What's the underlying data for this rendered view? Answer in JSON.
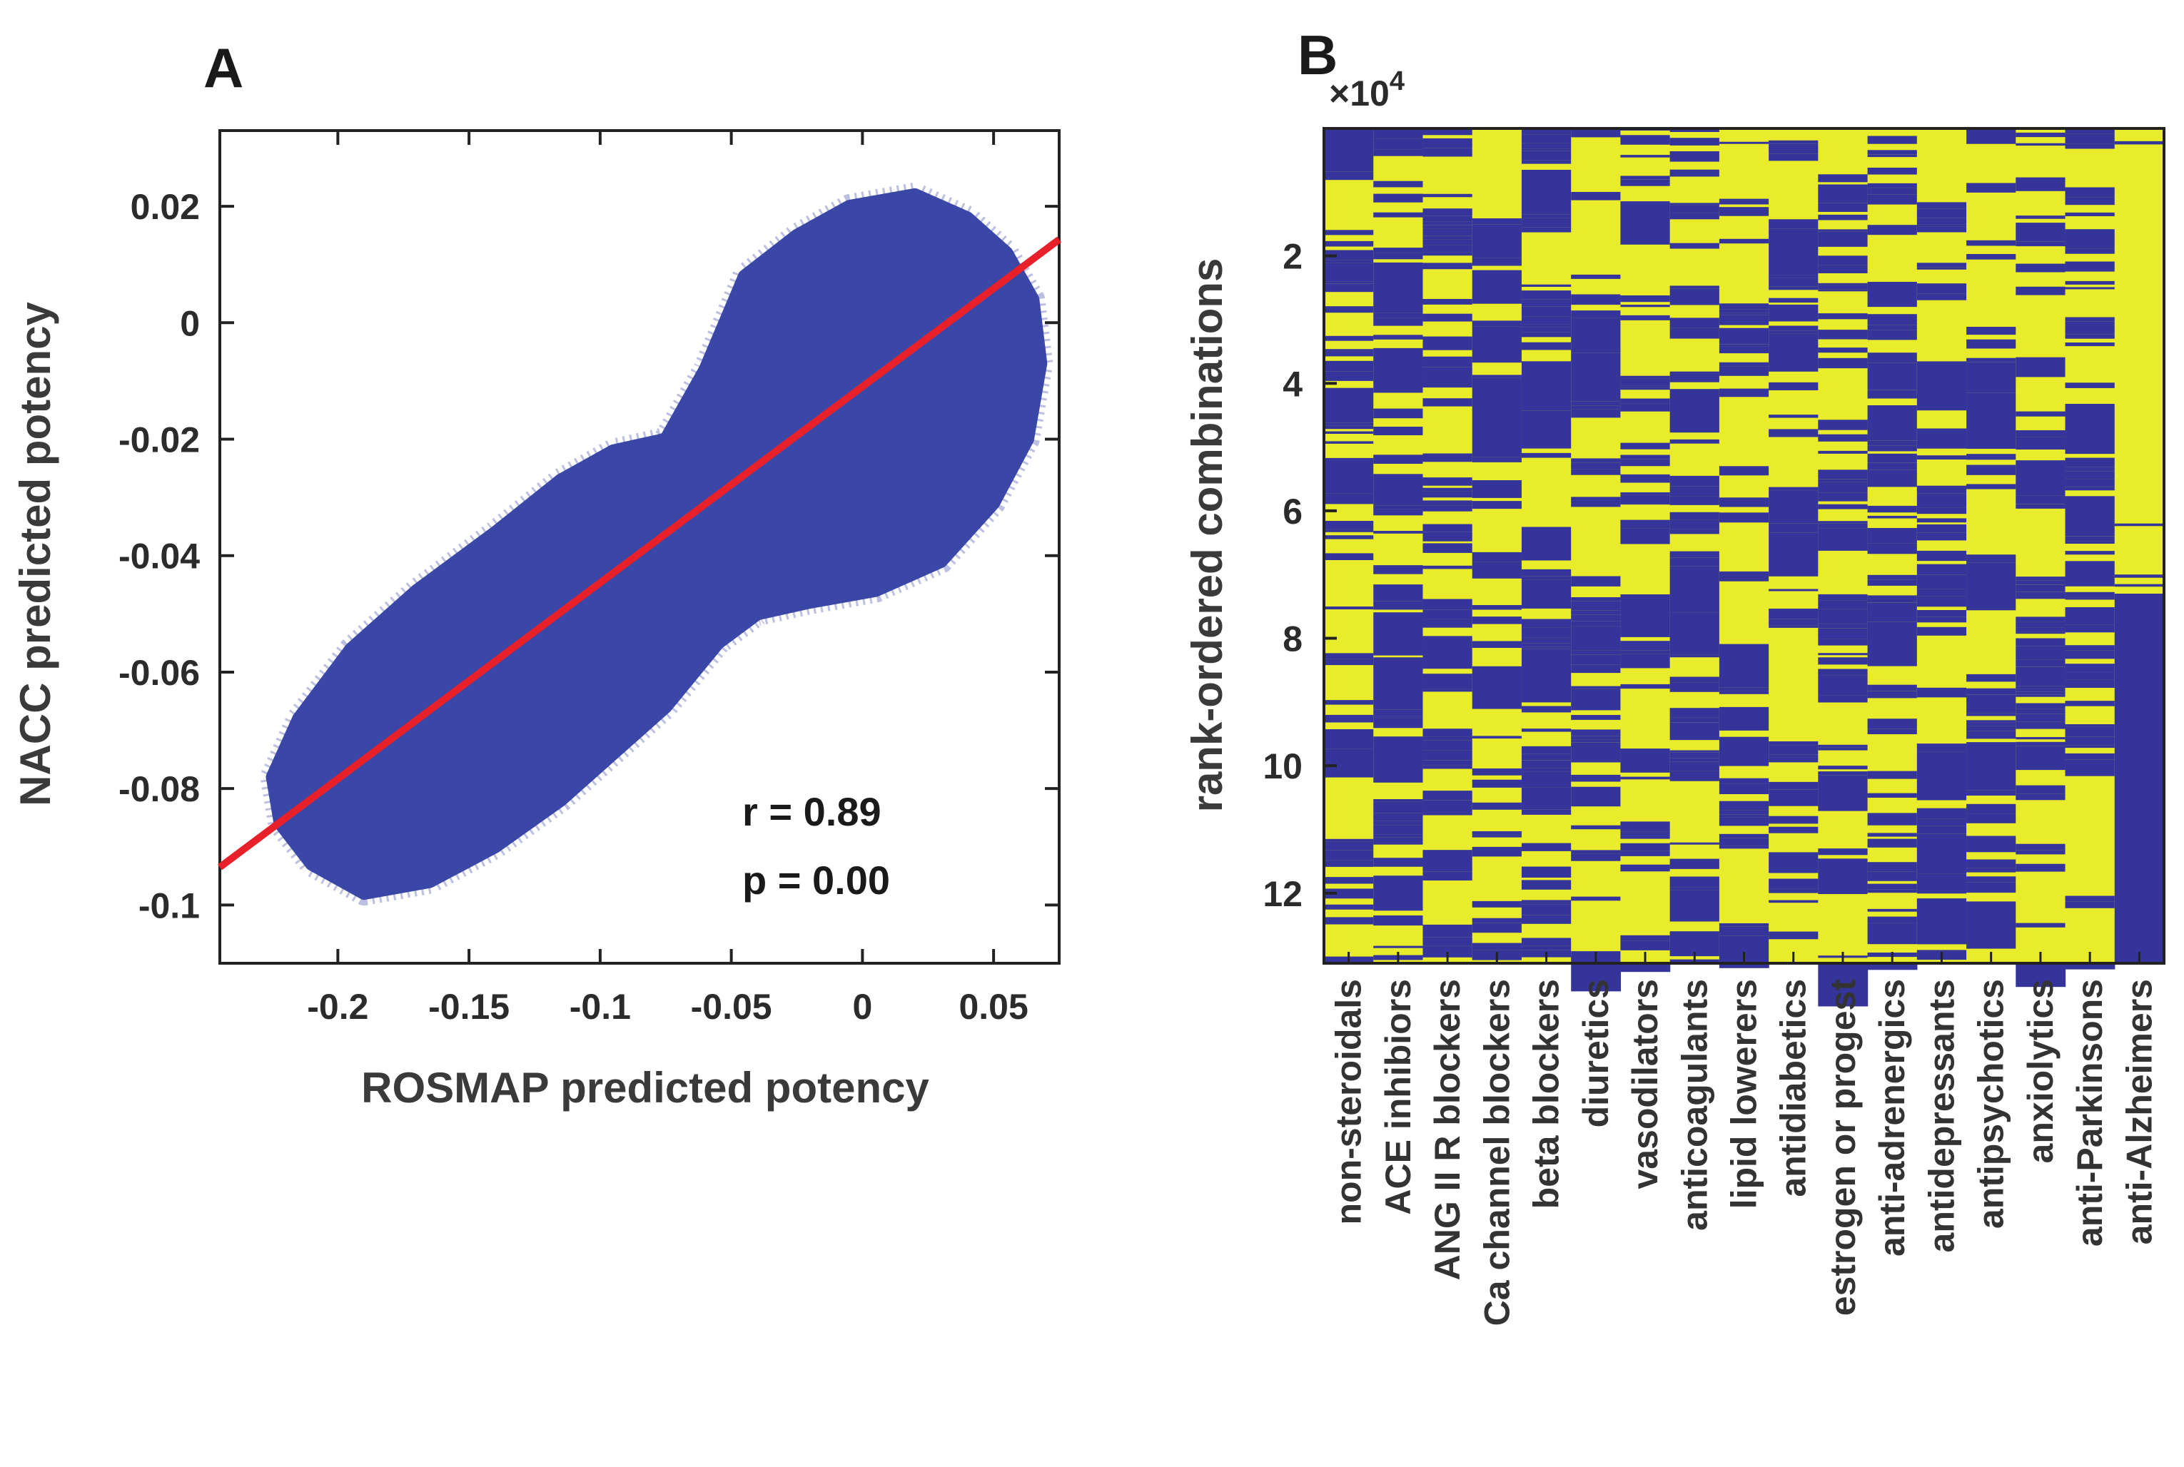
{
  "colors": {
    "point": "#3b47a6",
    "fit": "#e8202a",
    "yellow": "#e9ec2a",
    "blue": "#34349a",
    "axis": "#222222"
  },
  "chart_data": [
    {
      "panel": "A",
      "type": "scatter",
      "xlabel": "ROSMAP predicted potency",
      "ylabel": "NACC predicted potency",
      "xlim": [
        -0.245,
        0.075
      ],
      "ylim": [
        -0.11,
        0.033
      ],
      "xticks": [
        -0.2,
        -0.15,
        -0.1,
        -0.05,
        0,
        0.05
      ],
      "xtick_labels": [
        "-0.2",
        "-0.15",
        "-0.1",
        "-0.05",
        "0",
        "0.05"
      ],
      "yticks": [
        0.02,
        0,
        -0.02,
        -0.04,
        -0.06,
        -0.08,
        -0.1
      ],
      "ytick_labels": [
        "0.02",
        "0",
        "-0.02",
        "-0.04",
        "-0.06",
        "-0.08",
        "-0.1"
      ],
      "fit_line": {
        "x": [
          -0.245,
          0.075
        ],
        "y": [
          -0.0935,
          0.0143
        ]
      },
      "cloud_outline": {
        "x": [
          -0.225,
          -0.215,
          -0.195,
          -0.17,
          -0.14,
          -0.115,
          -0.095,
          -0.075,
          -0.06,
          -0.045,
          -0.025,
          -0.005,
          0.02,
          0.04,
          0.055,
          0.065,
          0.068,
          0.063,
          0.05,
          0.03,
          0.005,
          -0.02,
          -0.04,
          -0.055,
          -0.075,
          -0.095,
          -0.115,
          -0.14,
          -0.165,
          -0.19,
          -0.21,
          -0.222
        ],
        "y": [
          -0.078,
          -0.068,
          -0.056,
          -0.046,
          -0.036,
          -0.027,
          -0.022,
          -0.02,
          -0.008,
          0.008,
          0.015,
          0.02,
          0.022,
          0.018,
          0.012,
          0.004,
          -0.007,
          -0.02,
          -0.031,
          -0.041,
          -0.046,
          -0.048,
          -0.05,
          -0.055,
          -0.066,
          -0.074,
          -0.082,
          -0.09,
          -0.096,
          -0.098,
          -0.093,
          -0.086
        ]
      },
      "annotations": [
        "r = 0.89",
        "p = 0.00"
      ]
    },
    {
      "panel": "B",
      "type": "heatmap",
      "ylabel": "rank-ordered combinations",
      "y_multiplier": "×10",
      "y_multiplier_exp": "4",
      "ylim": [
        0,
        13.1
      ],
      "yticks": [
        2,
        4,
        6,
        8,
        10,
        12
      ],
      "ytick_labels": [
        "2",
        "4",
        "6",
        "8",
        "10",
        "12"
      ],
      "categories": [
        "non-steroidals",
        "ACE inhibiors",
        "ANG II R blockers",
        "Ca channel blockers",
        "beta blockers",
        "diuretics",
        "vasodilators",
        "anticoagulants",
        "lipid lowerers",
        "antidiabetics",
        "estrogen or progest",
        "anti-adrenergics",
        "antidepressants",
        "antipsychotics",
        "anxiolytics",
        "anti-Parkinsons",
        "anti-Alzheimers"
      ],
      "values_description": "binary membership (yellow = drug class included, blue = excluded); anti-Alzheimers included for ranks 0–7.3×10^4"
    }
  ]
}
